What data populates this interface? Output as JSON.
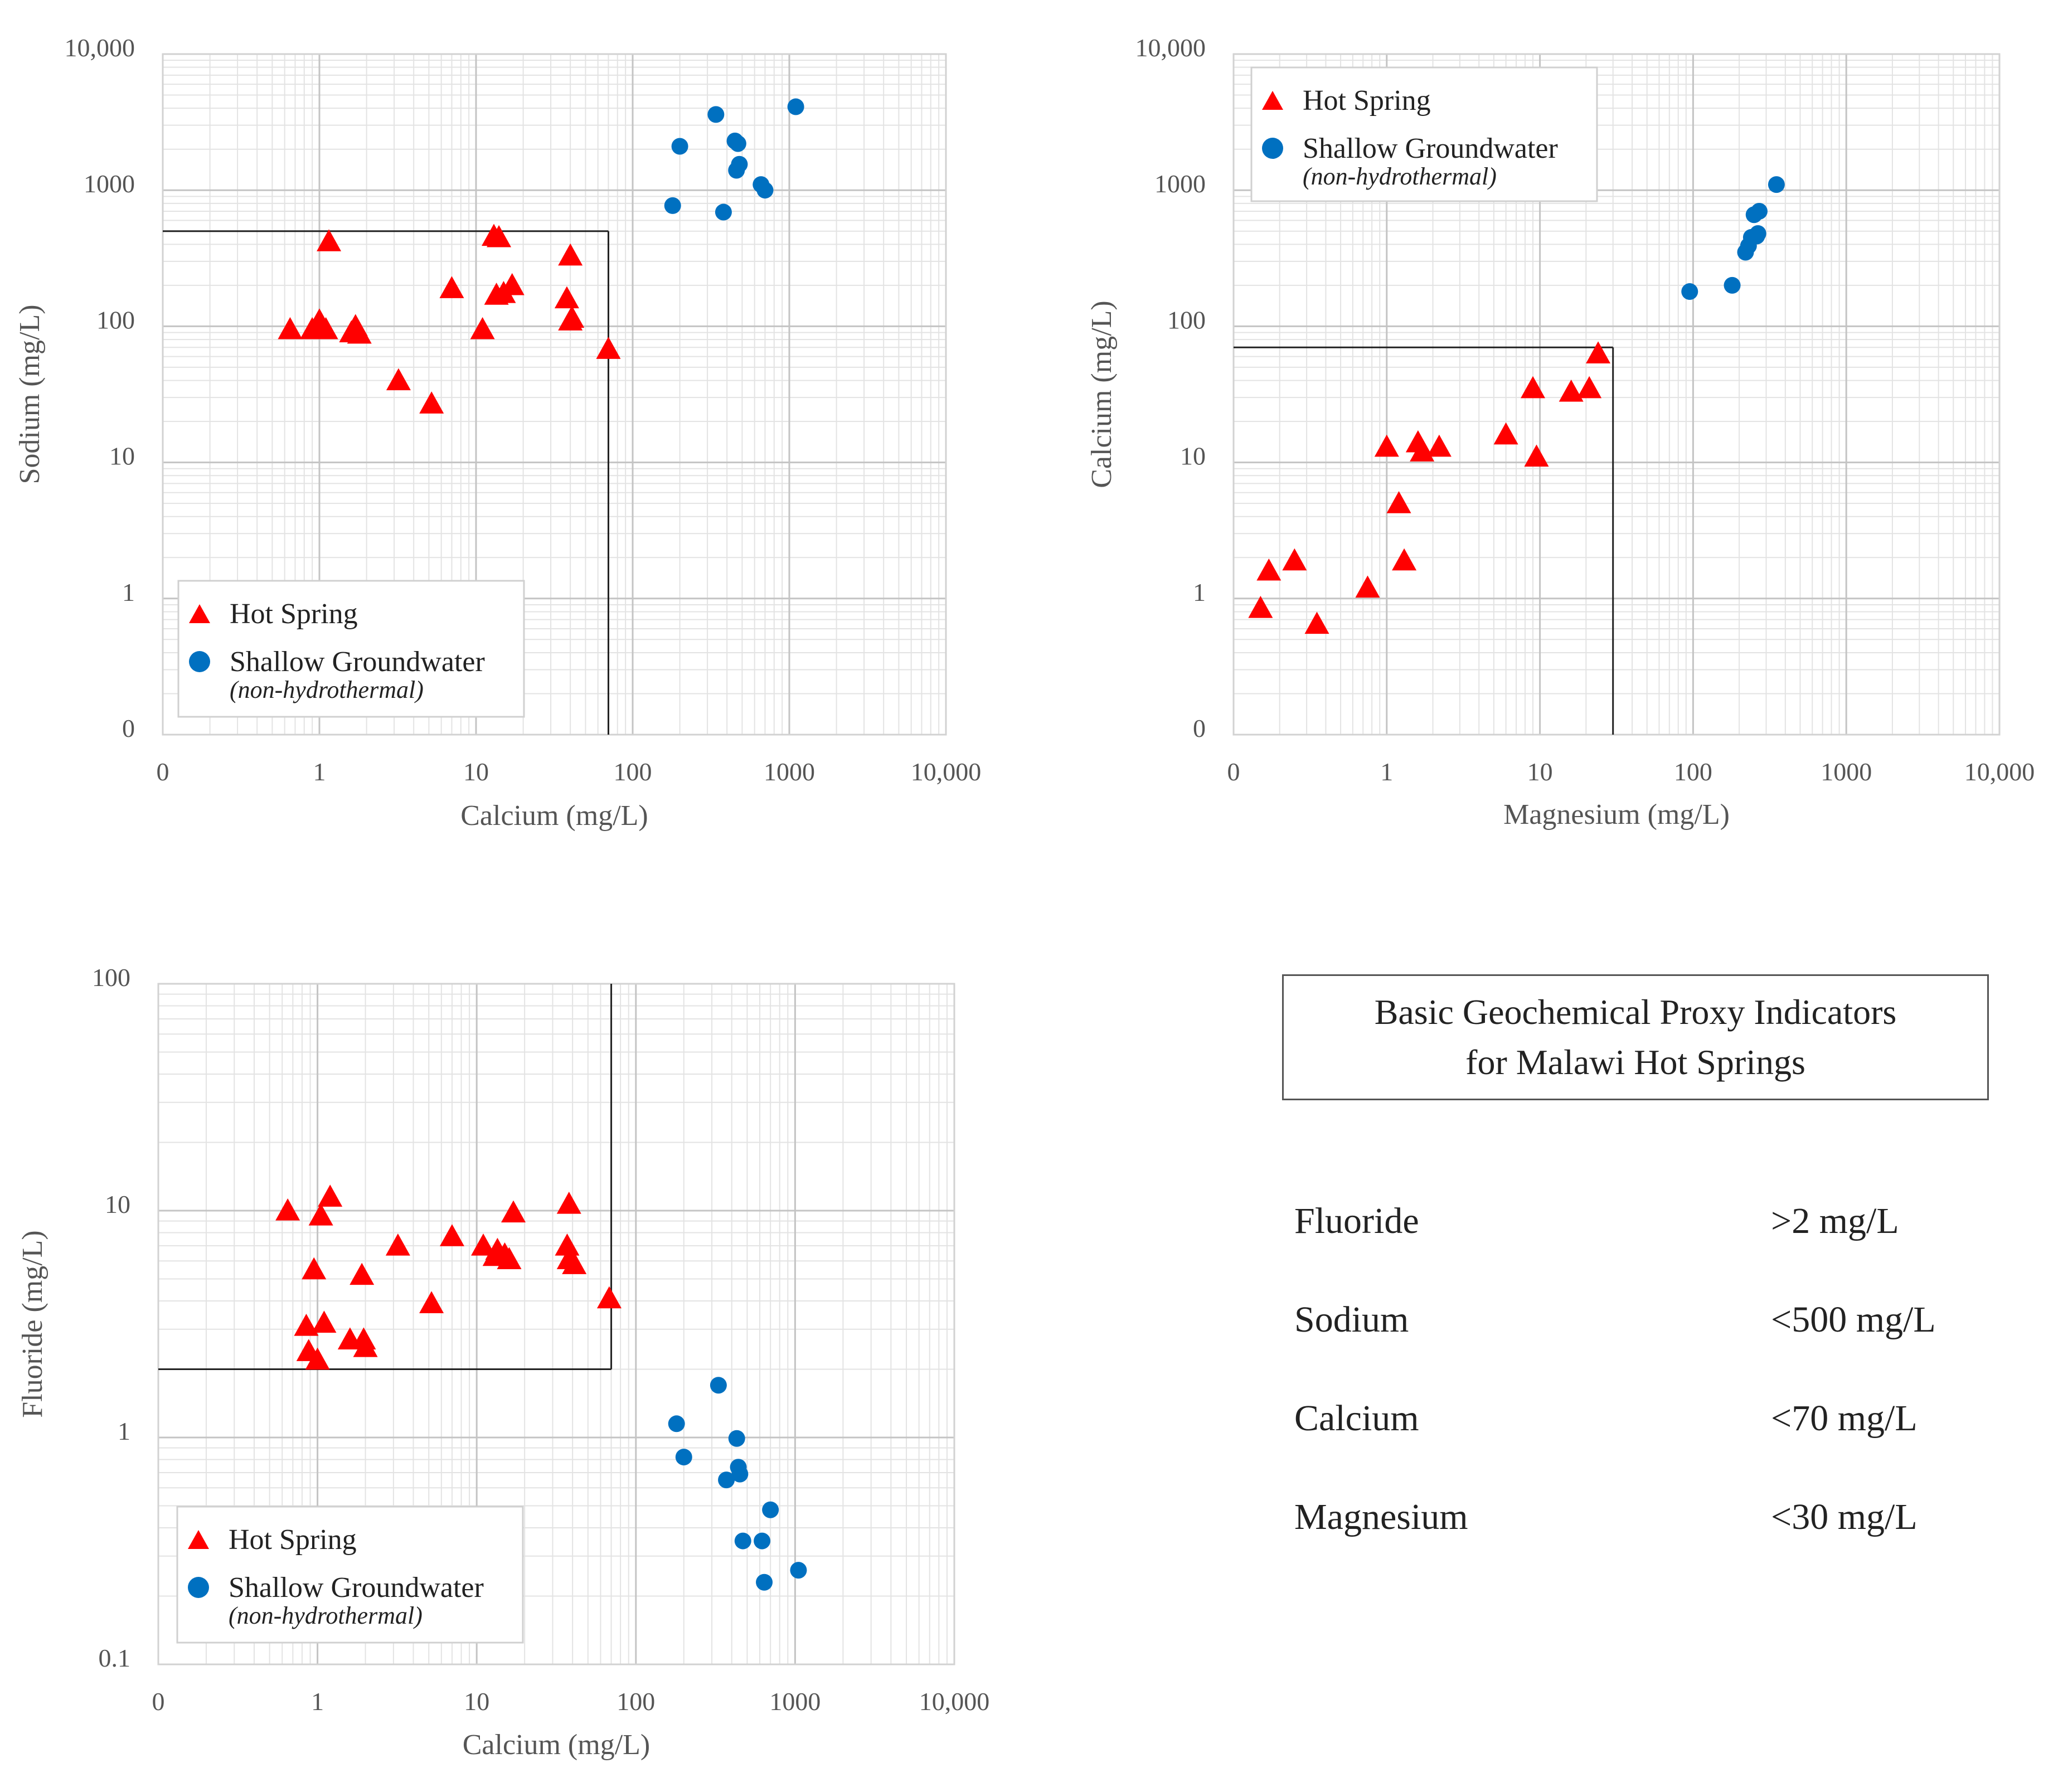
{
  "chart_data": [
    {
      "type": "scatter",
      "id": "sodium-calcium",
      "xlabel": "Calcium (mg/L)",
      "ylabel": "Sodium (mg/L)",
      "xscale": "log",
      "yscale": "log",
      "xlim": [
        0.1,
        10000
      ],
      "ylim": [
        0.1,
        10000
      ],
      "xticks": [
        {
          "v": 0.1,
          "label": "0"
        },
        {
          "v": 1,
          "label": "1"
        },
        {
          "v": 10,
          "label": "10"
        },
        {
          "v": 100,
          "label": "100"
        },
        {
          "v": 1000,
          "label": "1000"
        },
        {
          "v": 10000,
          "label": "10,000"
        }
      ],
      "yticks": [
        {
          "v": 0.1,
          "label": "0"
        },
        {
          "v": 1,
          "label": "1"
        },
        {
          "v": 10,
          "label": "10"
        },
        {
          "v": 100,
          "label": "100"
        },
        {
          "v": 1000,
          "label": "1000"
        },
        {
          "v": 10000,
          "label": "10,000"
        }
      ],
      "threshold": {
        "x": 70,
        "y": 500
      },
      "legend": {
        "position": "bottom-left"
      },
      "series": [
        {
          "name": "Hot Spring",
          "marker": "triangle",
          "color": "#ff0000",
          "points": [
            [
              0.65,
              95
            ],
            [
              0.9,
              95
            ],
            [
              1.0,
              110
            ],
            [
              1.1,
              95
            ],
            [
              1.15,
              420
            ],
            [
              1.6,
              90
            ],
            [
              1.7,
              100
            ],
            [
              1.8,
              88
            ],
            [
              3.2,
              40
            ],
            [
              5.2,
              27
            ],
            [
              7,
              190
            ],
            [
              11,
              95
            ],
            [
              13,
              460
            ],
            [
              13.5,
              170
            ],
            [
              14,
              450
            ],
            [
              15,
              175
            ],
            [
              17,
              200
            ],
            [
              38,
              160
            ],
            [
              40,
              330
            ],
            [
              40,
              110
            ],
            [
              41,
              115
            ],
            [
              70,
              68
            ]
          ]
        },
        {
          "name": "Shallow Groundwater",
          "subtitle": "(non-hydrothermal)",
          "marker": "circle",
          "color": "#0070c0",
          "points": [
            [
              180,
              770
            ],
            [
              200,
              2100
            ],
            [
              340,
              3600
            ],
            [
              380,
              690
            ],
            [
              450,
              2300
            ],
            [
              460,
              1400
            ],
            [
              470,
              2200
            ],
            [
              480,
              1550
            ],
            [
              660,
              1100
            ],
            [
              700,
              1000
            ],
            [
              1100,
              4100
            ]
          ]
        }
      ]
    },
    {
      "type": "scatter",
      "id": "calcium-magnesium",
      "xlabel": "Magnesium (mg/L)",
      "ylabel": "Calcium (mg/L)",
      "xscale": "log",
      "yscale": "log",
      "xlim": [
        0.1,
        10000
      ],
      "ylim": [
        0.1,
        10000
      ],
      "xticks": [
        {
          "v": 0.1,
          "label": "0"
        },
        {
          "v": 1,
          "label": "1"
        },
        {
          "v": 10,
          "label": "10"
        },
        {
          "v": 100,
          "label": "100"
        },
        {
          "v": 1000,
          "label": "1000"
        },
        {
          "v": 10000,
          "label": "10,000"
        }
      ],
      "yticks": [
        {
          "v": 0.1,
          "label": "0"
        },
        {
          "v": 1,
          "label": "1"
        },
        {
          "v": 10,
          "label": "10"
        },
        {
          "v": 100,
          "label": "100"
        },
        {
          "v": 1000,
          "label": "1000"
        },
        {
          "v": 10000,
          "label": "10,000"
        }
      ],
      "threshold": {
        "x": 30,
        "y": 70
      },
      "legend": {
        "position": "top-left"
      },
      "series": [
        {
          "name": "Hot Spring",
          "marker": "triangle",
          "color": "#ff0000",
          "points": [
            [
              0.15,
              0.85
            ],
            [
              0.17,
              1.6
            ],
            [
              0.25,
              1.9
            ],
            [
              0.35,
              0.65
            ],
            [
              0.75,
              1.2
            ],
            [
              1.0,
              13
            ],
            [
              1.2,
              5
            ],
            [
              1.3,
              1.9
            ],
            [
              1.6,
              14
            ],
            [
              1.7,
              12
            ],
            [
              2.2,
              13
            ],
            [
              6,
              16
            ],
            [
              9,
              35
            ],
            [
              9.5,
              11
            ],
            [
              16,
              33
            ],
            [
              21,
              35
            ],
            [
              24,
              63
            ]
          ]
        },
        {
          "name": "Shallow Groundwater",
          "subtitle": "(non-hydrothermal)",
          "marker": "circle",
          "color": "#0070c0",
          "points": [
            [
              95,
              180
            ],
            [
              180,
              200
            ],
            [
              220,
              350
            ],
            [
              230,
              390
            ],
            [
              240,
              450
            ],
            [
              250,
              660
            ],
            [
              260,
              460
            ],
            [
              265,
              480
            ],
            [
              270,
              700
            ],
            [
              350,
              1100
            ]
          ]
        }
      ]
    },
    {
      "type": "scatter",
      "id": "fluoride-calcium",
      "xlabel": "Calcium (mg/L)",
      "ylabel": "Fluoride (mg/L)",
      "xscale": "log",
      "yscale": "log",
      "xlim": [
        0.1,
        10000
      ],
      "ylim": [
        0.1,
        100
      ],
      "xticks": [
        {
          "v": 0.1,
          "label": "0"
        },
        {
          "v": 1,
          "label": "1"
        },
        {
          "v": 10,
          "label": "10"
        },
        {
          "v": 100,
          "label": "100"
        },
        {
          "v": 1000,
          "label": "1000"
        },
        {
          "v": 10000,
          "label": "10,000"
        }
      ],
      "yticks": [
        {
          "v": 0.1,
          "label": "0.1"
        },
        {
          "v": 1,
          "label": "1"
        },
        {
          "v": 10,
          "label": "10"
        },
        {
          "v": 100,
          "label": "100"
        }
      ],
      "threshold": {
        "x": 70,
        "y": 2
      },
      "legend": {
        "position": "bottom-left"
      },
      "series": [
        {
          "name": "Hot Spring",
          "marker": "triangle",
          "color": "#ff0000",
          "points": [
            [
              0.65,
              10
            ],
            [
              0.85,
              3.1
            ],
            [
              0.88,
              2.4
            ],
            [
              0.95,
              5.5
            ],
            [
              1.0,
              2.2
            ],
            [
              1.05,
              9.5
            ],
            [
              1.1,
              3.2
            ],
            [
              1.2,
              11.5
            ],
            [
              1.6,
              2.7
            ],
            [
              1.9,
              5.2
            ],
            [
              1.95,
              2.7
            ],
            [
              2.0,
              2.5
            ],
            [
              3.2,
              7
            ],
            [
              5.2,
              3.9
            ],
            [
              7,
              7.7
            ],
            [
              11,
              7
            ],
            [
              13,
              6.3
            ],
            [
              13.5,
              6.7
            ],
            [
              15,
              6.4
            ],
            [
              16,
              6.1
            ],
            [
              17,
              9.8
            ],
            [
              37,
              7
            ],
            [
              38,
              10.7
            ],
            [
              38,
              6.1
            ],
            [
              41,
              5.8
            ],
            [
              68,
              4.1
            ]
          ]
        },
        {
          "name": "Shallow Groundwater",
          "subtitle": "(non-hydrothermal)",
          "marker": "circle",
          "color": "#0070c0",
          "points": [
            [
              180,
              1.15
            ],
            [
              200,
              0.82
            ],
            [
              330,
              1.7
            ],
            [
              370,
              0.65
            ],
            [
              430,
              0.99
            ],
            [
              440,
              0.74
            ],
            [
              450,
              0.69
            ],
            [
              470,
              0.35
            ],
            [
              620,
              0.35
            ],
            [
              640,
              0.23
            ],
            [
              700,
              0.48
            ],
            [
              1050,
              0.26
            ]
          ]
        }
      ]
    }
  ],
  "legend_labels": {
    "hot_spring": "Hot Spring",
    "groundwater": "Shallow Groundwater",
    "groundwater_sub": "(non-hydrothermal)"
  },
  "info_box": {
    "title_line1": "Basic Geochemical Proxy Indicators",
    "title_line2": "for Malawi Hot Springs"
  },
  "indicators": [
    {
      "name": "Fluoride",
      "value": ">2 mg/L"
    },
    {
      "name": "Sodium",
      "value": "<500 mg/L"
    },
    {
      "name": "Calcium",
      "value": "<70 mg/L"
    },
    {
      "name": "Magnesium",
      "value": "<30 mg/L"
    }
  ]
}
